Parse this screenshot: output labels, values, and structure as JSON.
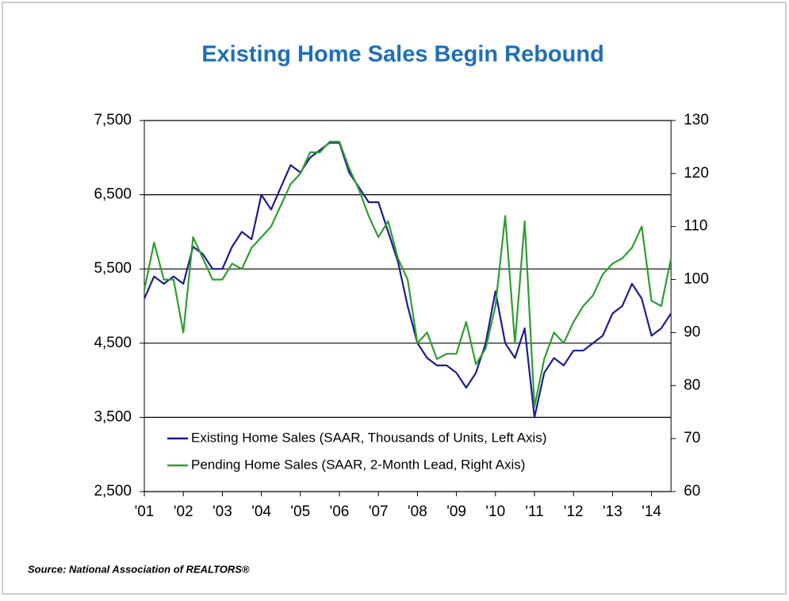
{
  "chart_data": {
    "type": "line",
    "title": "Existing Home Sales Begin Rebound",
    "source": "Source: National Association of REALTORS®",
    "categories": [
      "'01",
      null,
      null,
      null,
      "'02",
      null,
      null,
      null,
      "'03",
      null,
      null,
      null,
      "'04",
      null,
      null,
      null,
      "'05",
      null,
      null,
      null,
      "'06",
      null,
      null,
      null,
      "'07",
      null,
      null,
      null,
      "'08",
      null,
      null,
      null,
      "'09",
      null,
      null,
      null,
      "'10",
      null,
      null,
      null,
      "'11",
      null,
      null,
      null,
      "'12",
      null,
      null,
      null,
      "'13",
      null,
      null,
      null,
      "'14",
      null,
      null
    ],
    "series": [
      {
        "name": "Existing Home Sales (SAAR, Thousands of Units, Left Axis)",
        "color": "#1c1c8f",
        "values": [
          5100,
          5400,
          5300,
          5400,
          5300,
          5800,
          5700,
          5500,
          5500,
          5800,
          6000,
          5900,
          6500,
          6300,
          6600,
          6900,
          6800,
          7000,
          7100,
          7200,
          7200,
          6800,
          6600,
          6400,
          6400,
          6000,
          5600,
          5000,
          4500,
          4300,
          4200,
          4200,
          4100,
          3900,
          4100,
          4500,
          5200,
          4500,
          4300,
          4700,
          3500,
          4100,
          4300,
          4200,
          4400,
          4400,
          4500,
          4600,
          4900,
          5000,
          5300,
          5100,
          4600,
          4700,
          4900
        ]
      },
      {
        "name": "Pending Home Sales (SAAR, 2-Month Lead, Right Axis)",
        "color": "#2e9e2e",
        "axis": "y2",
        "values": [
          98,
          107,
          100,
          100,
          90,
          108,
          104,
          100,
          100,
          103,
          102,
          106,
          108,
          110,
          114,
          118,
          120,
          124,
          124,
          126,
          126,
          121,
          117,
          112,
          108,
          111,
          104,
          100,
          88,
          90,
          85,
          86,
          86,
          92,
          84,
          87,
          95,
          112,
          88,
          111,
          76,
          85,
          90,
          88,
          92,
          95,
          97,
          101,
          103,
          104,
          106,
          110,
          96,
          95,
          104
        ]
      }
    ],
    "ylim": [
      2500,
      7500
    ],
    "yticks": [
      {
        "value": 2500,
        "label": "2,500"
      },
      {
        "value": 3500,
        "label": "3,500"
      },
      {
        "value": 4500,
        "label": "4,500"
      },
      {
        "value": 5500,
        "label": "5,500"
      },
      {
        "value": 6500,
        "label": "6,500"
      },
      {
        "value": 7500,
        "label": "7,500"
      }
    ],
    "y2lim": [
      60,
      130
    ],
    "y2ticks": [
      60,
      70,
      80,
      90,
      100,
      110,
      120,
      130
    ],
    "grid": true
  }
}
